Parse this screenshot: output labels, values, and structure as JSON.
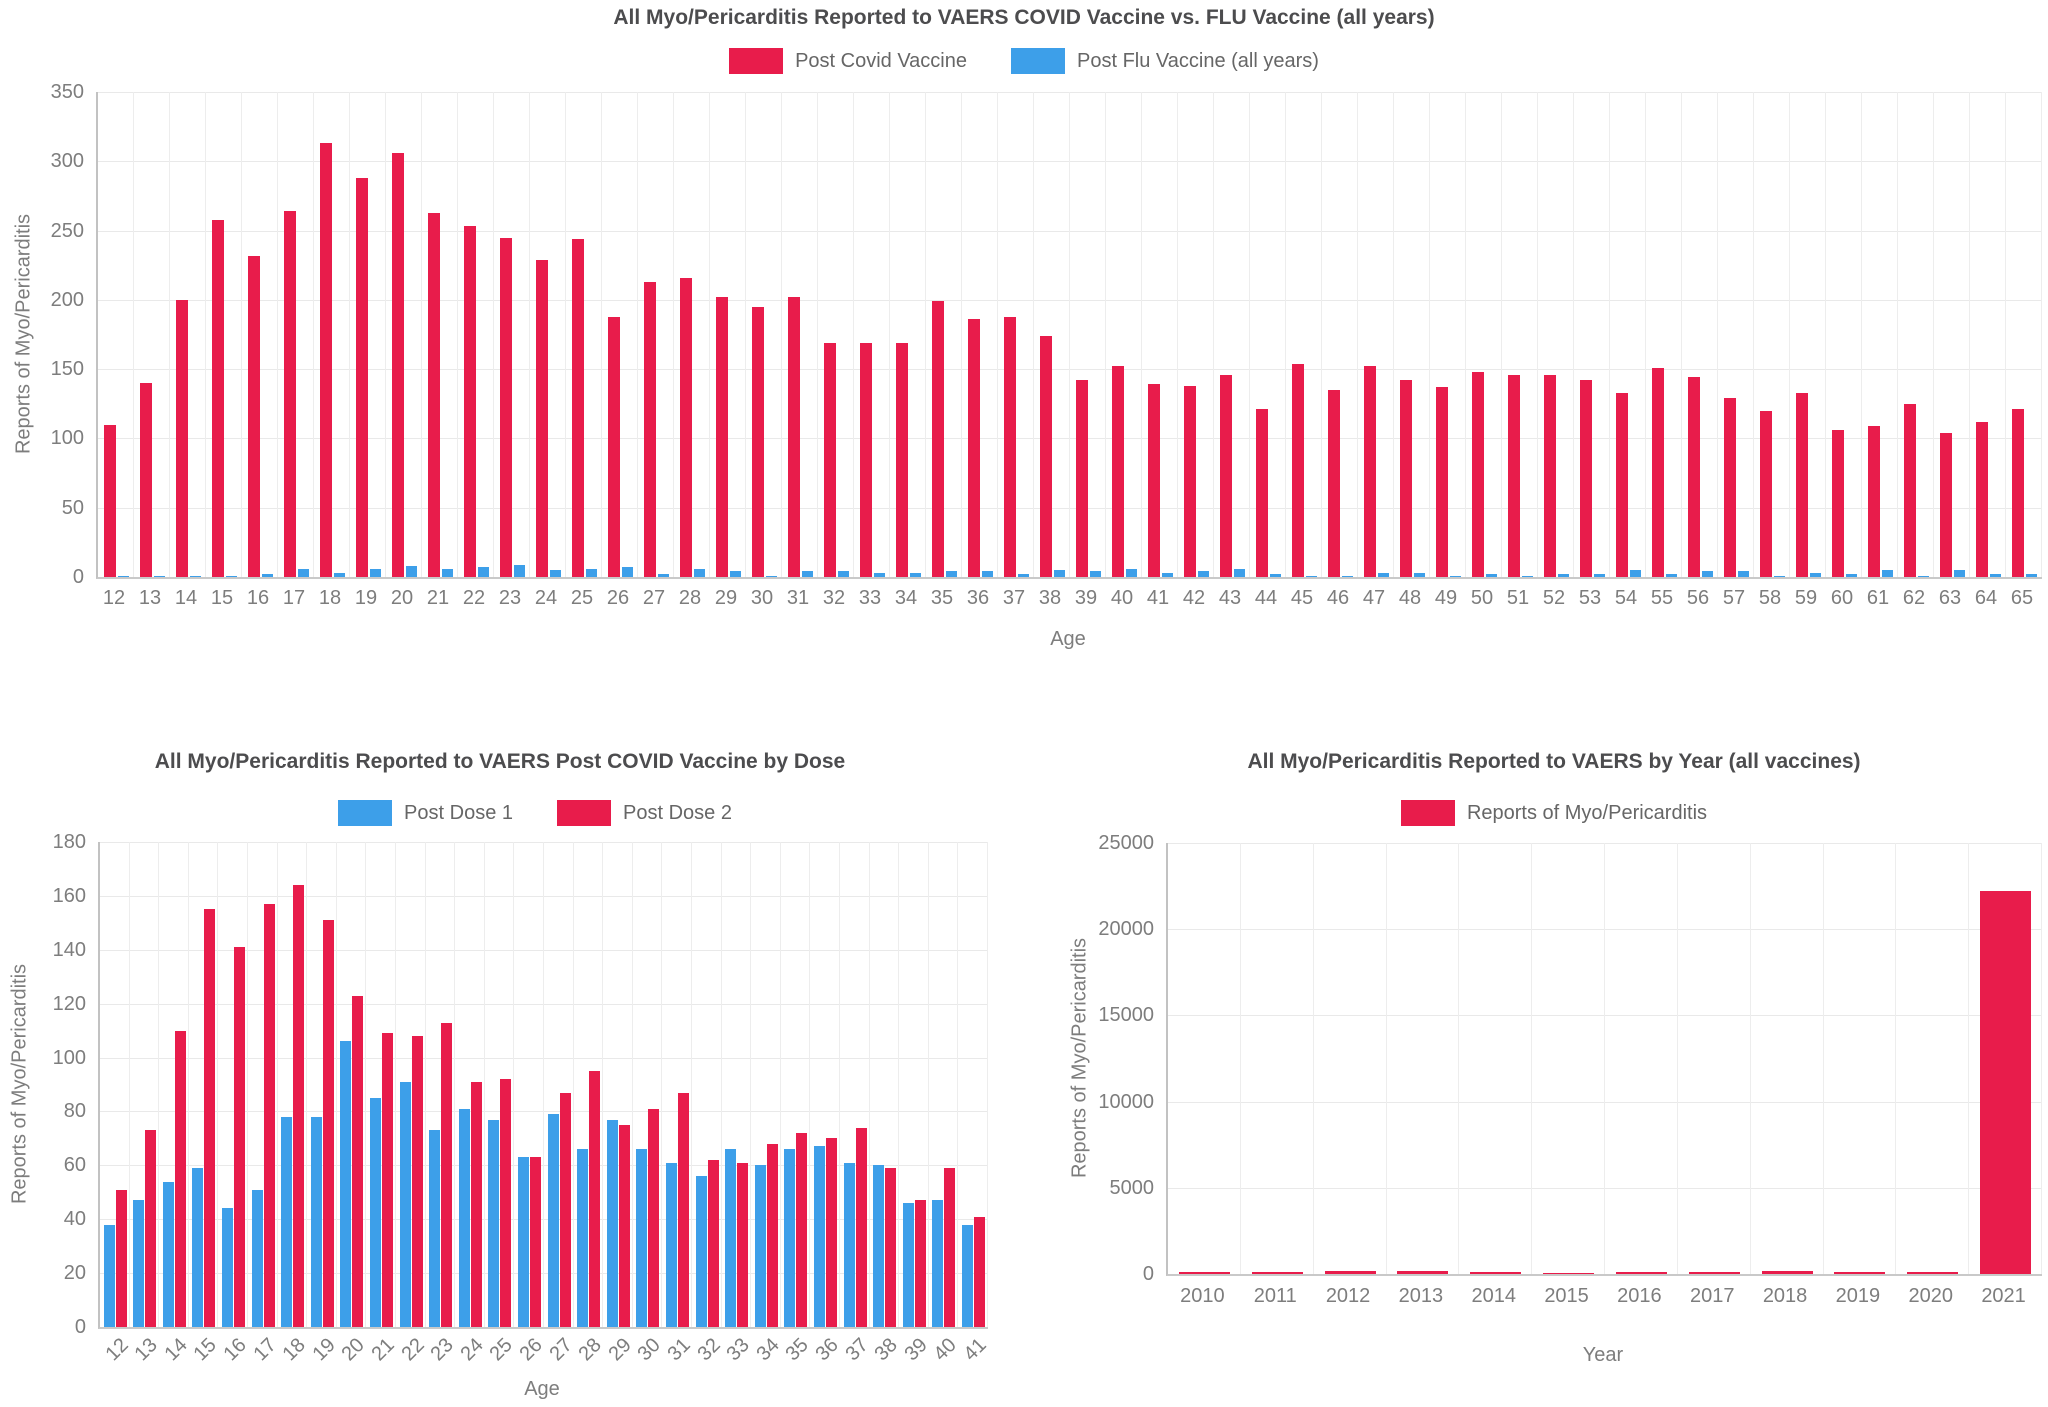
{
  "chart_data": [
    {
      "type": "bar",
      "title": "All Myo/Pericarditis Reported to VAERS COVID Vaccine vs. FLU Vaccine (all years)",
      "xlabel": "Age",
      "ylabel": "Reports of Myo/Pericarditis",
      "ylim": [
        0,
        350
      ],
      "ytick_step": 50,
      "grid": true,
      "legend_position": "top",
      "categories": [
        "12",
        "13",
        "14",
        "15",
        "16",
        "17",
        "18",
        "19",
        "20",
        "21",
        "22",
        "23",
        "24",
        "25",
        "26",
        "27",
        "28",
        "29",
        "30",
        "31",
        "32",
        "33",
        "34",
        "35",
        "36",
        "37",
        "38",
        "39",
        "40",
        "41",
        "42",
        "43",
        "44",
        "45",
        "46",
        "47",
        "48",
        "49",
        "50",
        "51",
        "52",
        "53",
        "54",
        "55",
        "56",
        "57",
        "58",
        "59",
        "60",
        "61",
        "62",
        "63",
        "64",
        "65"
      ],
      "series": [
        {
          "name": "Post Covid Vaccine",
          "color": "#e81c4b",
          "values": [
            110,
            140,
            200,
            258,
            232,
            264,
            313,
            288,
            306,
            263,
            253,
            245,
            229,
            244,
            188,
            213,
            216,
            202,
            195,
            202,
            169,
            169,
            169,
            199,
            186,
            188,
            174,
            142,
            152,
            139,
            138,
            146,
            121,
            154,
            135,
            152,
            142,
            137,
            148,
            146,
            146,
            142,
            133,
            151,
            144,
            129,
            120,
            133,
            106,
            109,
            125,
            104,
            112,
            121
          ]
        },
        {
          "name": "Post Flu Vaccine (all years)",
          "color": "#3d9fe9",
          "values": [
            1,
            1,
            1,
            1,
            2,
            6,
            3,
            6,
            8,
            6,
            7,
            9,
            5,
            6,
            7,
            2,
            6,
            4,
            1,
            4,
            4,
            3,
            3,
            4,
            4,
            2,
            5,
            4,
            6,
            3,
            4,
            6,
            2,
            1,
            1,
            3,
            3,
            1,
            2,
            1,
            2,
            2,
            5,
            2,
            4,
            4,
            1,
            3,
            2,
            5,
            1,
            5,
            2,
            2
          ]
        }
      ]
    },
    {
      "type": "bar",
      "title": "All Myo/Pericarditis Reported to VAERS Post COVID Vaccine by Dose",
      "xlabel": "Age",
      "ylabel": "Reports of Myo/Pericarditis",
      "ylim": [
        0,
        180
      ],
      "ytick_step": 20,
      "grid": true,
      "legend_position": "top",
      "categories": [
        "12",
        "13",
        "14",
        "15",
        "16",
        "17",
        "18",
        "19",
        "20",
        "21",
        "22",
        "23",
        "24",
        "25",
        "26",
        "27",
        "28",
        "29",
        "30",
        "31",
        "32",
        "33",
        "34",
        "35",
        "36",
        "37",
        "38",
        "39",
        "40",
        "41"
      ],
      "series": [
        {
          "name": "Post Dose 1",
          "color": "#3d9fe9",
          "values": [
            38,
            47,
            54,
            59,
            44,
            51,
            78,
            78,
            106,
            85,
            91,
            73,
            81,
            77,
            63,
            79,
            66,
            77,
            66,
            61,
            56,
            66,
            60,
            66,
            67,
            61,
            60,
            46,
            47,
            38
          ]
        },
        {
          "name": "Post Dose 2",
          "color": "#e81c4b",
          "values": [
            51,
            73,
            110,
            155,
            141,
            157,
            164,
            151,
            123,
            109,
            108,
            113,
            91,
            92,
            63,
            87,
            95,
            75,
            81,
            87,
            62,
            61,
            68,
            72,
            70,
            74,
            59,
            47,
            59,
            41
          ]
        }
      ]
    },
    {
      "type": "bar",
      "title": "All Myo/Pericarditis Reported to VAERS by Year (all vaccines)",
      "xlabel": "Year",
      "ylabel": "Reports of Myo/Pericarditis",
      "ylim": [
        0,
        25000
      ],
      "ytick_step": 5000,
      "grid": true,
      "legend_position": "top",
      "categories": [
        "2010",
        "2011",
        "2012",
        "2013",
        "2014",
        "2015",
        "2016",
        "2017",
        "2018",
        "2019",
        "2020",
        "2021"
      ],
      "series": [
        {
          "name": "Reports of Myo/Pericarditis",
          "color": "#e81c4b",
          "values": [
            100,
            90,
            170,
            180,
            110,
            60,
            90,
            100,
            170,
            100,
            100,
            22200
          ]
        }
      ]
    }
  ]
}
